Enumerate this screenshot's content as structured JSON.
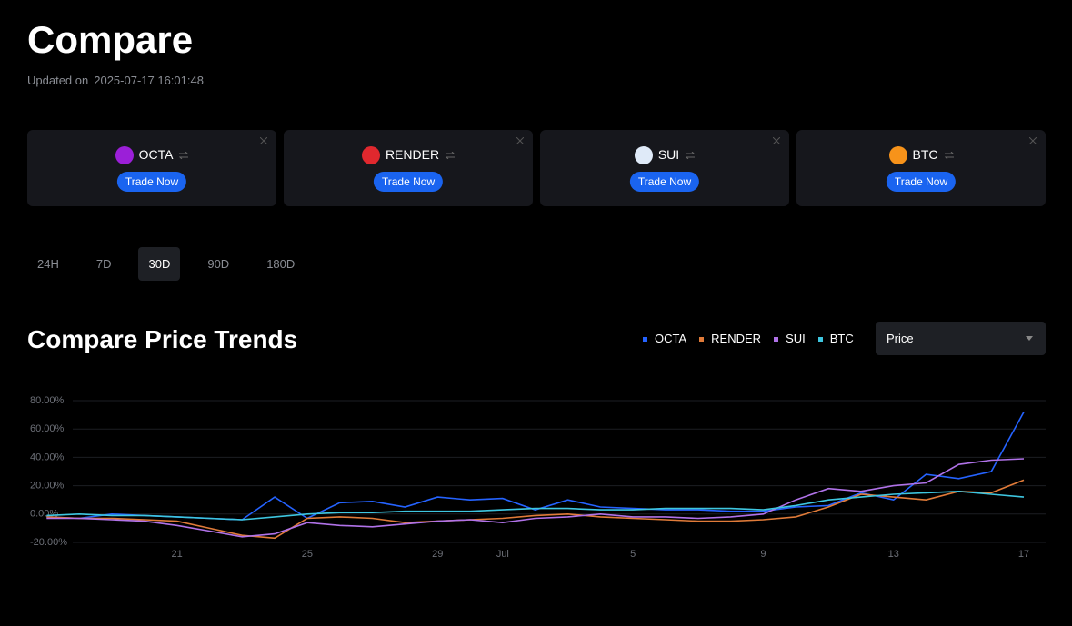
{
  "header": {
    "title": "Compare",
    "updated_label": "Updated on",
    "updated_time": "2025-07-17 16:01:48"
  },
  "cards": [
    {
      "name": "OCTA",
      "action": "Trade Now"
    },
    {
      "name": "RENDER",
      "action": "Trade Now"
    },
    {
      "name": "SUI",
      "action": "Trade Now"
    },
    {
      "name": "BTC",
      "action": "Trade Now"
    }
  ],
  "tabs": [
    "24H",
    "7D",
    "30D",
    "90D",
    "180D"
  ],
  "dropdown": "Price",
  "chart_data": {
    "type": "line",
    "title": "Compare Price Trends",
    "categories": [
      null,
      null,
      null,
      null,
      "21",
      null,
      null,
      null,
      "25",
      null,
      null,
      null,
      "29",
      null,
      "Jul",
      null,
      null,
      null,
      "5",
      null,
      null,
      null,
      "9",
      null,
      null,
      null,
      "13",
      null,
      null,
      null,
      "17"
    ],
    "series": [
      {
        "name": "OCTA",
        "color": "#2563ff",
        "values": [
          -2,
          -3,
          0,
          -1,
          -2,
          -3,
          -4,
          12,
          -3,
          8,
          9,
          5,
          12,
          10,
          11,
          3,
          10,
          5,
          4,
          3,
          3,
          2,
          2,
          5,
          6,
          15,
          10,
          28,
          25,
          30,
          72
        ]
      },
      {
        "name": "RENDER",
        "color": "#e07b39",
        "values": [
          -2,
          -3,
          -3,
          -4,
          -5,
          -10,
          -15,
          -17,
          -3,
          -2,
          -3,
          -6,
          -5,
          -4,
          -3,
          -1,
          0,
          -2,
          -3,
          -4,
          -5,
          -5,
          -4,
          -2,
          5,
          14,
          12,
          10,
          16,
          15,
          24
        ]
      },
      {
        "name": "SUI",
        "color": "#b072e8",
        "values": [
          -3,
          -3,
          -4,
          -5,
          -8,
          -12,
          -16,
          -14,
          -6,
          -8,
          -9,
          -7,
          -5,
          -4,
          -6,
          -3,
          -2,
          0,
          -2,
          -2,
          -3,
          -2,
          0,
          10,
          18,
          16,
          20,
          22,
          35,
          38,
          39
        ]
      },
      {
        "name": "BTC",
        "color": "#3ec6e0",
        "values": [
          -1,
          0,
          -1,
          -1,
          -2,
          -3,
          -4,
          -2,
          0,
          1,
          1,
          2,
          2,
          2,
          3,
          4,
          4,
          3,
          3,
          4,
          4,
          4,
          3,
          6,
          10,
          12,
          14,
          15,
          16,
          14,
          12
        ]
      }
    ],
    "ylim": [
      -20,
      80
    ],
    "yticks": [
      {
        "value": 80,
        "label": "80.00%"
      },
      {
        "value": 60,
        "label": "60.00%"
      },
      {
        "value": 40,
        "label": "40.00%"
      },
      {
        "value": 20,
        "label": "20.00%"
      },
      {
        "value": 0,
        "label": "0.00%"
      },
      {
        "value": -20,
        "label": "-20.00%"
      }
    ],
    "grid": true
  }
}
